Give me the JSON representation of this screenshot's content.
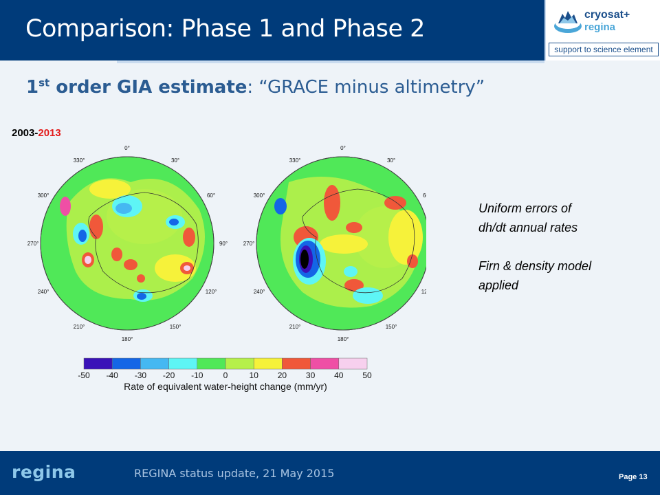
{
  "header": {
    "title": "Comparison: Phase 1 and Phase 2"
  },
  "logo": {
    "name_line1": "cryosat+",
    "name_line2": "regina",
    "tagline": "support to science element"
  },
  "subtitle": {
    "number": "1",
    "superscript": "st",
    "bold_text": " order GIA estimate",
    "rest": ": “GRACE minus altimetry”"
  },
  "period": {
    "start": "2003-",
    "end": "2013"
  },
  "maps": {
    "longitude_labels": [
      "0°",
      "30°",
      "60°",
      "90°",
      "120°",
      "150°",
      "180°",
      "210°",
      "240°",
      "270°",
      "300°",
      "330°"
    ]
  },
  "notes": {
    "line1": "Uniform errors of",
    "line2": "dh/dt annual rates",
    "line3": "Firn & density model",
    "line4": "applied"
  },
  "colorbar": {
    "ticks": [
      "-50",
      "-40",
      "-30",
      "-20",
      "-10",
      "0",
      "10",
      "20",
      "30",
      "40",
      "50"
    ],
    "label": "Rate of equivalent water-height change (mm/yr)",
    "colors": [
      "#3a12b8",
      "#1466e6",
      "#45b8f2",
      "#5ef5f5",
      "#50e858",
      "#b6f04a",
      "#f6f23a",
      "#f0583a",
      "#ef4fa5",
      "#f7d0ee"
    ]
  },
  "footer": {
    "logo": "regina",
    "text": "REGINA status update,  21 May 2015",
    "page": "Page 13"
  }
}
